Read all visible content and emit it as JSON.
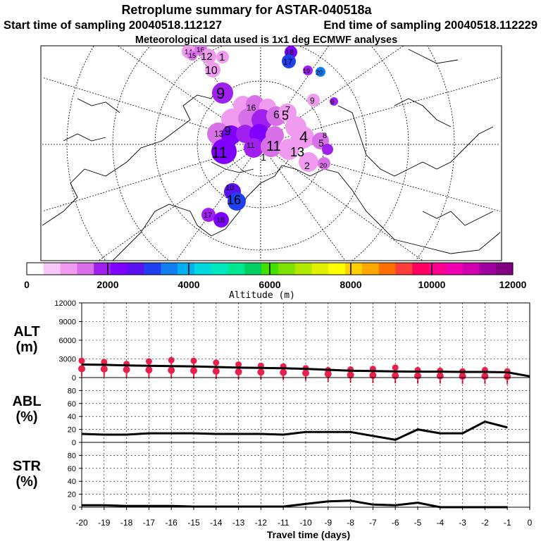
{
  "header": {
    "title": "Retroplume summary for ASTAR-040518a",
    "start_label": "Start time of sampling 20040518.112127",
    "end_label": "End time of sampling 20040518.112229",
    "met_label": "Meteorological data used is 1x1 deg ECMWF analyses"
  },
  "colorbar": {
    "colors": [
      "#ffffff",
      "#f8c8f8",
      "#f09af0",
      "#d870e8",
      "#a020f0",
      "#8000ff",
      "#5a10f0",
      "#2040f0",
      "#1080f0",
      "#00b0f0",
      "#00d8e0",
      "#00e8c0",
      "#00e890",
      "#00d060",
      "#40e000",
      "#80e000",
      "#b0e800",
      "#e0f000",
      "#ffff00",
      "#ffd000",
      "#ffa800",
      "#ff7000",
      "#ff3c3c",
      "#ff0060",
      "#ff0090",
      "#f000b0",
      "#d000b0",
      "#a000a0",
      "#800080"
    ],
    "tick_labels": [
      "0",
      "2000",
      "4000",
      "6000",
      "8000",
      "10000",
      "12000"
    ],
    "axis_title": "Altitude (m)"
  },
  "map_points": [
    {
      "label": "14",
      "color": "#f09af0"
    },
    {
      "label": "16",
      "color": "#d870e8"
    },
    {
      "label": "15",
      "color": "#d870e8"
    },
    {
      "label": "12",
      "color": "#f09af0"
    },
    {
      "label": "1",
      "color": "#f09af0"
    },
    {
      "label": "10",
      "color": "#f09af0"
    },
    {
      "label": "18",
      "color": "#8000ff"
    },
    {
      "label": "17",
      "color": "#2040f0"
    },
    {
      "label": "19",
      "color": "#a020f0"
    },
    {
      "label": "20",
      "color": "#1080f0"
    },
    {
      "label": "9",
      "color": "#a020f0"
    },
    {
      "label": "9",
      "color": "#f09af0"
    },
    {
      "label": "9",
      "color": "#a020f0"
    },
    {
      "label": "16",
      "color": "#d870e8"
    },
    {
      "label": "5",
      "color": "#f09af0"
    },
    {
      "label": "6",
      "color": "#d870e8"
    },
    {
      "label": "7",
      "color": "#d870e8"
    },
    {
      "label": "4",
      "color": "#f09af0"
    },
    {
      "label": "5",
      "color": "#d870e8"
    },
    {
      "label": "13",
      "color": "#a020f0"
    },
    {
      "label": "9",
      "color": "#8000ff"
    },
    {
      "label": "11",
      "color": "#a020f0"
    },
    {
      "label": "11",
      "color": "#d870e8"
    },
    {
      "label": "1",
      "color": "#f09af0"
    },
    {
      "label": "11",
      "color": "#a020f0"
    },
    {
      "label": "13",
      "color": "#d870e8"
    },
    {
      "label": "8",
      "color": "#f09af0"
    },
    {
      "label": "2",
      "color": "#f09af0"
    },
    {
      "label": "20",
      "color": "#d870e8"
    },
    {
      "label": "16",
      "color": "#2040f0"
    },
    {
      "label": "17",
      "color": "#5a10f0"
    },
    {
      "label": "18",
      "color": "#8000ff"
    },
    {
      "label": "10",
      "color": "#d870e8"
    }
  ],
  "chart_data": [
    {
      "type": "line",
      "panel": "ALT",
      "ylabel": "ALT\n(m)",
      "ylim": [
        0,
        12000
      ],
      "yticks": [
        "12000",
        "9000",
        "6000",
        "3000",
        "0"
      ],
      "x": [
        -20,
        -19,
        -18,
        -17,
        -16,
        -15,
        -14,
        -13,
        -12,
        -11,
        -10,
        -9,
        -8,
        -7,
        -6,
        -5,
        -4,
        -3,
        -2,
        -1,
        0
      ],
      "series": [
        {
          "name": "mean altitude",
          "values": [
            2100,
            2050,
            1950,
            1900,
            1850,
            1800,
            1700,
            1600,
            1550,
            1500,
            1400,
            1250,
            1100,
            1050,
            1000,
            950,
            950,
            900,
            900,
            850,
            200
          ]
        },
        {
          "name": "plume altitude spread (markers)",
          "values": [
            2700,
            2500,
            2200,
            2600,
            2800,
            2700,
            2400,
            2100,
            1900,
            1800,
            1500,
            1200,
            1300,
            1400,
            1600,
            1200,
            1100,
            1000,
            1200,
            1000,
            null
          ]
        }
      ],
      "marker_color": "#e8204a"
    },
    {
      "type": "line",
      "panel": "ABL",
      "ylabel": "ABL\n(%)",
      "ylim": [
        0,
        100
      ],
      "yticks": [
        "80",
        "60",
        "40",
        "20",
        "0"
      ],
      "x": [
        -20,
        -19,
        -18,
        -17,
        -16,
        -15,
        -14,
        -13,
        -12,
        -11,
        -10,
        -9,
        -8,
        -7,
        -6,
        -5,
        -4,
        -3,
        -2,
        -1
      ],
      "series": [
        {
          "name": "ABL fraction",
          "values": [
            13,
            12,
            12,
            14,
            14,
            14,
            13,
            13,
            13,
            12,
            16,
            16,
            16,
            10,
            4,
            20,
            14,
            14,
            32,
            23
          ]
        }
      ]
    },
    {
      "type": "line",
      "panel": "STR",
      "ylabel": "STR\n(%)",
      "ylim": [
        0,
        100
      ],
      "yticks": [
        "80",
        "60",
        "40",
        "20",
        "0"
      ],
      "x": [
        -20,
        -19,
        -18,
        -17,
        -16,
        -15,
        -14,
        -13,
        -12,
        -11,
        -10,
        -9,
        -8,
        -7,
        -6,
        -5,
        -4,
        -3,
        -2,
        -1
      ],
      "series": [
        {
          "name": "stratosphere fraction",
          "values": [
            3,
            3,
            2,
            2,
            2,
            1,
            1,
            1,
            1,
            1,
            5,
            9,
            10,
            4,
            3,
            7,
            0,
            0,
            0,
            0
          ]
        }
      ]
    }
  ],
  "xaxis": {
    "tick_labels": [
      "-20",
      "-19",
      "-18",
      "-17",
      "-16",
      "-15",
      "-14",
      "-13",
      "-12",
      "-11",
      "-10",
      "-9",
      "-8",
      "-7",
      "-6",
      "-5",
      "-4",
      "-3",
      "-2",
      "-1",
      "0"
    ],
    "title": "Travel time (days)"
  }
}
